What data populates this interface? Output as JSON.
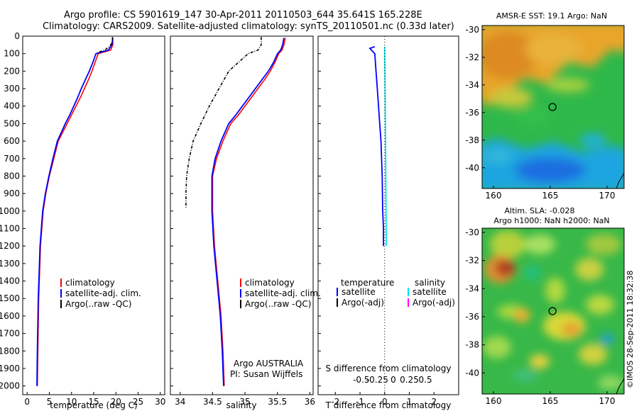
{
  "titles": {
    "line1": "Argo profile: CS 5901619_147 30-Apr-2011 20110503_644 35.641S 165.228E",
    "line2": "Climatology: CARS2009. Satellite-adjusted climatology: synTS_20110501.nc (0.33d later)"
  },
  "stamp": "©IMOS 28-Sep-2011 18:32:38",
  "colors": {
    "climatology": "#ff0000",
    "satellite": "#0000ff",
    "argo": "#000000",
    "salinity_satellite": "#00e5ee",
    "salinity_argo": "#ff00ff"
  },
  "chart_data": [
    {
      "type": "line",
      "id": "temperature",
      "xlabel": "temperature (deg C)",
      "ylabel": "",
      "xlim": [
        -1,
        31
      ],
      "ylim": [
        2050,
        0
      ],
      "xticks": [
        0,
        5,
        10,
        15,
        20,
        25,
        30
      ],
      "yticks": [
        0,
        100,
        200,
        300,
        400,
        500,
        600,
        700,
        800,
        900,
        1000,
        1100,
        1200,
        1300,
        1400,
        1500,
        1600,
        1700,
        1800,
        1900,
        2000
      ],
      "legend": [
        "climatology",
        "satellite-adj. clim.",
        "Argo(..raw -QC)"
      ],
      "series": [
        {
          "name": "climatology",
          "x": [
            19.3,
            19.3,
            18.8,
            16,
            15.3,
            14.6,
            13.8,
            12.9,
            12.0,
            11.0,
            10.0,
            9.0,
            8.0,
            7.0,
            6.0,
            5.0,
            4.2,
            3.6,
            3.0,
            2.6,
            2.4,
            2.3
          ],
          "y": [
            10,
            50,
            80,
            100,
            150,
            200,
            250,
            300,
            350,
            400,
            450,
            500,
            550,
            600,
            700,
            800,
            900,
            1000,
            1200,
            1500,
            1800,
            2000
          ]
        },
        {
          "name": "satellite-adj. clim.",
          "x": [
            19.3,
            19.1,
            18.3,
            15.5,
            14.8,
            14.0,
            13.1,
            12.2,
            11.4,
            10.5,
            9.6,
            8.6,
            7.7,
            6.8,
            5.8,
            4.9,
            4.1,
            3.5,
            2.9,
            2.5,
            2.3,
            2.2
          ],
          "y": [
            10,
            50,
            80,
            100,
            150,
            200,
            250,
            300,
            350,
            400,
            450,
            500,
            550,
            600,
            700,
            800,
            900,
            1000,
            1200,
            1500,
            1800,
            2000
          ]
        },
        {
          "name": "Argo(..raw -QC)",
          "x": [
            19.2,
            19.2,
            19.1,
            18.5,
            17.5,
            16.3,
            15.8
          ],
          "y": [
            5,
            20,
            40,
            60,
            80,
            90,
            100
          ]
        }
      ]
    },
    {
      "type": "line",
      "id": "salinity",
      "xlabel": "salinity",
      "ylabel": "",
      "xlim": [
        33.85,
        36.05
      ],
      "ylim": [
        2050,
        0
      ],
      "xticks": [
        34,
        34.5,
        35,
        35.5,
        36
      ],
      "legend": [
        "climatology",
        "satellite-adj. clim.",
        "Argo(..raw -QC)"
      ],
      "annotation": [
        "Argo AUSTRALIA",
        "PI: Susan Wijffels"
      ],
      "series": [
        {
          "name": "climatology",
          "x": [
            35.62,
            35.6,
            35.57,
            35.52,
            35.46,
            35.39,
            35.3,
            35.2,
            35.1,
            35.0,
            34.9,
            34.78,
            34.66,
            34.56,
            34.5,
            34.5,
            34.53,
            34.58,
            34.63,
            34.66,
            34.68
          ],
          "y": [
            10,
            50,
            80,
            100,
            150,
            200,
            250,
            300,
            350,
            400,
            450,
            500,
            600,
            700,
            800,
            1000,
            1200,
            1400,
            1600,
            1800,
            2000
          ]
        },
        {
          "name": "satellite-adj. clim.",
          "x": [
            35.6,
            35.58,
            35.55,
            35.5,
            35.44,
            35.36,
            35.26,
            35.16,
            35.06,
            34.96,
            34.86,
            34.75,
            34.63,
            34.54,
            34.49,
            34.49,
            34.52,
            34.57,
            34.62,
            34.65,
            34.67
          ],
          "y": [
            10,
            50,
            80,
            100,
            150,
            200,
            250,
            300,
            350,
            400,
            450,
            500,
            600,
            700,
            800,
            1000,
            1200,
            1400,
            1600,
            1800,
            2000
          ]
        },
        {
          "name": "Argo(..raw -QC)",
          "x": [
            35.25,
            35.25,
            35.2,
            35.05,
            34.9,
            34.75,
            34.6,
            34.45,
            34.32,
            34.2,
            34.14,
            34.1,
            34.09,
            34.09
          ],
          "y": [
            5,
            50,
            80,
            100,
            150,
            200,
            300,
            400,
            500,
            600,
            700,
            800,
            900,
            980
          ]
        }
      ]
    },
    {
      "type": "line",
      "id": "difference",
      "xlabel": "T difference from climatology",
      "xlabel_top": "S difference from climatology",
      "xlim": [
        -2.7,
        3.0
      ],
      "ylim": [
        2050,
        0
      ],
      "xticks_T": [
        -2,
        -1,
        0,
        1,
        2
      ],
      "xticks_S_labels": [
        "-0.5",
        "-0.25",
        "0",
        "0.25",
        "0.5"
      ],
      "xticks_S_values": [
        -0.5,
        -0.25,
        0,
        0.25,
        0.5
      ],
      "legend_temperature": {
        "header": "temperature",
        "items": [
          "satellite",
          "Argo(-adj)"
        ]
      },
      "legend_salinity": {
        "header": "salinity",
        "items": [
          "satellite",
          "Argo(-adj)"
        ]
      },
      "series": [
        {
          "name": "satellite",
          "quantity": "temperature",
          "x": [
            -0.4,
            -0.6,
            -0.4,
            -0.35,
            -0.3,
            -0.25,
            -0.2,
            -0.15,
            -0.1,
            -0.08,
            -0.05,
            -0.05
          ],
          "y": [
            60,
            70,
            100,
            200,
            300,
            400,
            500,
            600,
            800,
            1000,
            1100,
            1200
          ]
        },
        {
          "name": "satellite",
          "quantity": "salinity",
          "x": [
            -0.02,
            -0.018,
            -0.015,
            -0.012,
            -0.01,
            -0.008,
            -0.006,
            -0.004,
            -0.002,
            0.0,
            0.002,
            0.005
          ],
          "y": [
            60,
            100,
            200,
            300,
            400,
            500,
            600,
            700,
            800,
            900,
            1000,
            1200
          ]
        }
      ]
    },
    {
      "type": "heatmap",
      "id": "sst-map",
      "title": "AMSR-E SST: 19.1  Argo: NaN",
      "xlim": [
        159,
        171.5
      ],
      "ylim": [
        -41.5,
        -29.7
      ],
      "xticks": [
        160,
        165,
        170
      ],
      "yticks": [
        -30,
        -32,
        -34,
        -36,
        -38,
        -40
      ],
      "marker": {
        "lon": 165.2,
        "lat": -35.6
      }
    },
    {
      "type": "heatmap",
      "id": "sla-map",
      "title": "Altim. SLA: -0.028",
      "subtitle": "Argo h1000: NaN h2000: NaN",
      "xlim": [
        159,
        171.5
      ],
      "ylim": [
        -41.5,
        -29.7
      ],
      "xticks": [
        160,
        165,
        170
      ],
      "yticks": [
        -30,
        -32,
        -34,
        -36,
        -38,
        -40
      ],
      "marker": {
        "lon": 165.2,
        "lat": -35.6
      }
    }
  ]
}
